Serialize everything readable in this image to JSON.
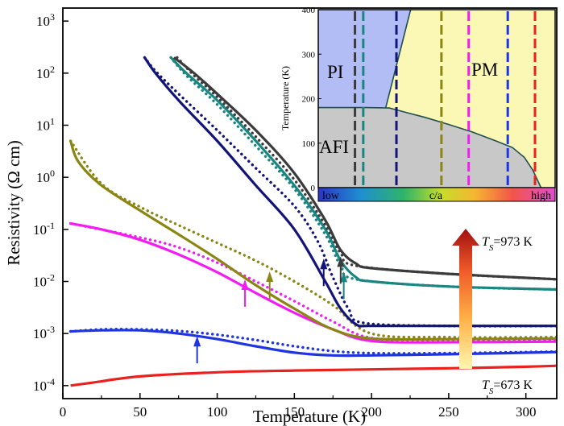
{
  "chart_data": [
    {
      "type": "line",
      "xlabel": "Temperature (K)",
      "ylabel": "Resistivity (Ω cm)",
      "xlim": [
        0,
        320
      ],
      "ylim_log10": [
        -4.25,
        3.25
      ],
      "yscale": "log",
      "x_ticks": [
        "0",
        "50",
        "100",
        "150",
        "200",
        "250",
        "300"
      ],
      "x_tick_values": [
        0,
        50,
        100,
        150,
        200,
        250,
        300
      ],
      "y_ticks": [
        {
          "base": "10",
          "exp": "-4",
          "value": -4
        },
        {
          "base": "10",
          "exp": "-3",
          "value": -3
        },
        {
          "base": "10",
          "exp": "-2",
          "value": -2
        },
        {
          "base": "10",
          "exp": "-1",
          "value": -1
        },
        {
          "base": "10",
          "exp": "0",
          "value": 0
        },
        {
          "base": "10",
          "exp": "1",
          "value": 1
        },
        {
          "base": "10",
          "exp": "2",
          "value": 2
        },
        {
          "base": "10",
          "exp": "3",
          "value": 3
        }
      ],
      "legend": "none",
      "series": [
        {
          "color": "#e8221f",
          "solid": [
            [
              5,
              0.0001
            ],
            [
              20,
              0.000115
            ],
            [
              50,
              0.00015
            ],
            [
              100,
              0.00018
            ],
            [
              150,
              0.000195
            ],
            [
              200,
              0.000205
            ],
            [
              250,
              0.000215
            ],
            [
              300,
              0.00023
            ],
            [
              320,
              0.00024
            ]
          ],
          "dotted": [],
          "arrow": null
        },
        {
          "color": "#1f35e0",
          "solid": [
            [
              5,
              0.0011
            ],
            [
              25,
              0.00115
            ],
            [
              50,
              0.00115
            ],
            [
              75,
              0.001
            ],
            [
              100,
              0.00078
            ],
            [
              125,
              0.00057
            ],
            [
              150,
              0.00043
            ],
            [
              175,
              0.00038
            ],
            [
              200,
              0.00038
            ],
            [
              250,
              0.0004
            ],
            [
              320,
              0.00044
            ]
          ],
          "dotted": [
            [
              5,
              0.0011
            ],
            [
              25,
              0.0012
            ],
            [
              50,
              0.0012
            ],
            [
              75,
              0.00112
            ],
            [
              100,
              0.00095
            ],
            [
              125,
              0.00075
            ],
            [
              150,
              0.00057
            ],
            [
              175,
              0.00046
            ],
            [
              200,
              0.00042
            ],
            [
              250,
              0.00042
            ],
            [
              320,
              0.00045
            ]
          ],
          "arrow": 87
        },
        {
          "color": "#f21df0",
          "solid": [
            [
              5,
              0.13
            ],
            [
              25,
              0.1
            ],
            [
              50,
              0.063
            ],
            [
              75,
              0.033
            ],
            [
              100,
              0.015
            ],
            [
              125,
              0.006
            ],
            [
              150,
              0.0025
            ],
            [
              175,
              0.0012
            ],
            [
              200,
              0.00072
            ],
            [
              250,
              0.00068
            ],
            [
              320,
              0.0007
            ]
          ],
          "dotted": [
            [
              5,
              0.13
            ],
            [
              50,
              0.07
            ],
            [
              75,
              0.045
            ],
            [
              100,
              0.023
            ],
            [
              125,
              0.01
            ],
            [
              150,
              0.0042
            ],
            [
              175,
              0.0017
            ],
            [
              200,
              0.00082
            ],
            [
              250,
              0.00075
            ],
            [
              320,
              0.00075
            ]
          ],
          "arrow": 118
        },
        {
          "color": "#8b8614",
          "solid": [
            [
              5,
              5.0
            ],
            [
              10,
              2.0
            ],
            [
              25,
              0.7
            ],
            [
              50,
              0.23
            ],
            [
              75,
              0.08
            ],
            [
              100,
              0.027
            ],
            [
              125,
              0.0085
            ],
            [
              150,
              0.003
            ],
            [
              175,
              0.0012
            ],
            [
              200,
              0.0008
            ],
            [
              250,
              0.00078
            ],
            [
              320,
              0.0008
            ]
          ],
          "dotted": [
            [
              5,
              5.0
            ],
            [
              25,
              0.75
            ],
            [
              50,
              0.27
            ],
            [
              75,
              0.12
            ],
            [
              100,
              0.055
            ],
            [
              125,
              0.025
            ],
            [
              150,
              0.01
            ],
            [
              175,
              0.0035
            ],
            [
              200,
              0.001
            ],
            [
              250,
              0.00085
            ],
            [
              320,
              0.00085
            ]
          ],
          "arrow": 134
        },
        {
          "color": "#121478",
          "solid": [
            [
              53,
              200
            ],
            [
              60,
              100
            ],
            [
              75,
              30
            ],
            [
              100,
              5
            ],
            [
              125,
              0.7
            ],
            [
              150,
              0.1
            ],
            [
              170,
              0.01
            ],
            [
              180,
              0.003
            ],
            [
              190,
              0.0015
            ],
            [
              200,
              0.0014
            ],
            [
              250,
              0.0014
            ],
            [
              320,
              0.0014
            ]
          ],
          "dotted": [
            [
              53,
              200
            ],
            [
              60,
              110
            ],
            [
              75,
              40
            ],
            [
              100,
              8
            ],
            [
              125,
              1.5
            ],
            [
              150,
              0.28
            ],
            [
              165,
              0.06
            ],
            [
              175,
              0.012
            ],
            [
              185,
              0.003
            ],
            [
              195,
              0.0016
            ],
            [
              250,
              0.0014
            ],
            [
              320,
              0.0014
            ]
          ],
          "arrow": 169
        },
        {
          "color": "#1a8581",
          "solid": [
            [
              70,
              200
            ],
            [
              80,
              100
            ],
            [
              100,
              30
            ],
            [
              125,
              5
            ],
            [
              150,
              0.7
            ],
            [
              170,
              0.1
            ],
            [
              180,
              0.025
            ],
            [
              190,
              0.012
            ],
            [
              200,
              0.01
            ],
            [
              250,
              0.008
            ],
            [
              320,
              0.007
            ]
          ],
          "dotted": [
            [
              70,
              200
            ],
            [
              80,
              90
            ],
            [
              100,
              25
            ],
            [
              125,
              4
            ],
            [
              150,
              0.6
            ],
            [
              170,
              0.08
            ],
            [
              180,
              0.02
            ],
            [
              190,
              0.011
            ],
            [
              250,
              0.008
            ],
            [
              320,
              0.007
            ]
          ],
          "arrow": 182
        },
        {
          "color": "#3b3b3b",
          "solid": [
            [
              72,
              200
            ],
            [
              85,
              100
            ],
            [
              100,
              40
            ],
            [
              125,
              8
            ],
            [
              150,
              1.2
            ],
            [
              170,
              0.15
            ],
            [
              180,
              0.04
            ],
            [
              190,
              0.022
            ],
            [
              200,
              0.018
            ],
            [
              250,
              0.014
            ],
            [
              320,
              0.011
            ]
          ],
          "dotted": [
            [
              74,
              200
            ],
            [
              85,
              90
            ],
            [
              100,
              35
            ],
            [
              125,
              6
            ],
            [
              150,
              0.9
            ],
            [
              170,
              0.12
            ],
            [
              180,
              0.035
            ],
            [
              190,
              0.02
            ],
            [
              250,
              0.014
            ],
            [
              320,
              0.011
            ]
          ],
          "arrow": 180
        }
      ],
      "annotations": {
        "ts_top": {
          "prefix": "T",
          "sub": "S",
          "suffix": "=973 K"
        },
        "ts_bottom": {
          "prefix": "T",
          "sub": "S",
          "suffix": "=673 K"
        }
      }
    },
    {
      "type": "phase-diagram",
      "ylabel": "Temperature (K)",
      "ylim": [
        0,
        400
      ],
      "y_ticks": [
        "0",
        "100",
        "200",
        "300",
        "400"
      ],
      "y_tick_values": [
        0,
        100,
        200,
        300,
        400
      ],
      "colorbar": {
        "low": "low",
        "mid": "c/a",
        "high": "high"
      },
      "phases": {
        "pi": "PI",
        "pm": "PM",
        "afi": "AFI"
      },
      "phase_colors": {
        "pi": "#b3bdf5",
        "pm": "#fbf7b4",
        "afi": "#c8c8c8"
      },
      "sample_line_colors": [
        "#3b3b3b",
        "#1a8581",
        "#121478",
        "#8b8614",
        "#f21df0",
        "#1f35e0",
        "#e8221f"
      ]
    }
  ]
}
